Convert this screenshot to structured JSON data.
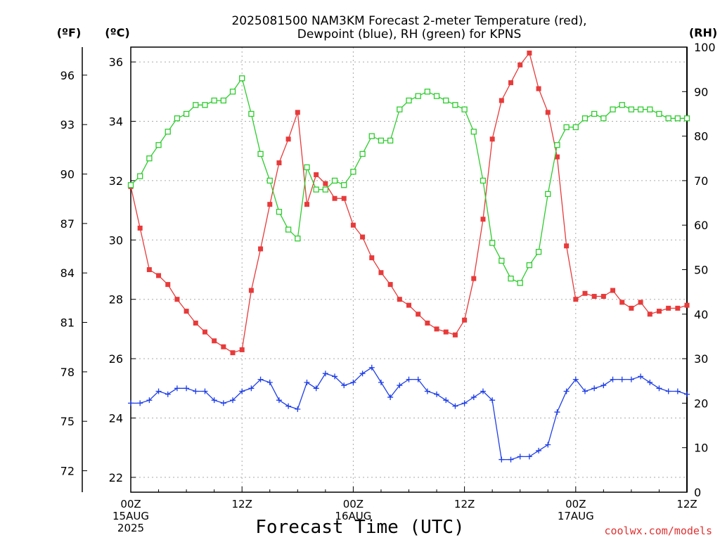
{
  "chart_data": {
    "type": "line",
    "title_line1": "2025081500 NAM3KM Forecast 2-meter Temperature (red),",
    "title_line2": "Dewpoint (blue), RH (green) for KPNS",
    "xlabel": "Forecast Time (UTC)",
    "credit": "coolwx.com/models",
    "left_unit_f": "(ºF)",
    "left_unit_c": "(ºC)",
    "right_unit": "(RH)",
    "x_range_hours": [
      0,
      60
    ],
    "x_ticks": [
      {
        "hour": 0,
        "lines": [
          "00Z",
          "15AUG",
          "2025"
        ]
      },
      {
        "hour": 12,
        "lines": [
          "12Z"
        ]
      },
      {
        "hour": 24,
        "lines": [
          "00Z",
          "16AUG"
        ]
      },
      {
        "hour": 36,
        "lines": [
          "12Z"
        ]
      },
      {
        "hour": 48,
        "lines": [
          "00Z",
          "17AUG"
        ]
      },
      {
        "hour": 60,
        "lines": [
          "12Z"
        ]
      }
    ],
    "y_celsius_range": [
      21.5,
      36.5
    ],
    "y_celsius_ticks": [
      22,
      24,
      26,
      28,
      30,
      32,
      34,
      36
    ],
    "y_fahrenheit_ticks": [
      72,
      75,
      78,
      81,
      84,
      87,
      90,
      93,
      96
    ],
    "y_rh_range": [
      0,
      100
    ],
    "y_rh_ticks": [
      0,
      10,
      20,
      30,
      40,
      50,
      60,
      70,
      80,
      90,
      100
    ],
    "grid": true,
    "series": [
      {
        "name": "Temperature",
        "color": "#e83a3a",
        "marker": "filled-square",
        "axis": "celsius",
        "values": [
          31.8,
          30.4,
          29.0,
          28.8,
          28.5,
          28.0,
          27.6,
          27.2,
          26.9,
          26.6,
          26.4,
          26.2,
          26.3,
          28.3,
          29.7,
          31.2,
          32.6,
          33.4,
          34.3,
          31.2,
          32.2,
          31.9,
          31.4,
          31.4,
          30.5,
          30.1,
          29.4,
          28.9,
          28.5,
          28.0,
          27.8,
          27.5,
          27.2,
          27.0,
          26.9,
          26.8,
          27.3,
          28.7,
          30.7,
          33.4,
          34.7,
          35.3,
          35.9,
          36.3,
          35.1,
          34.3,
          32.8,
          29.8,
          28.0,
          28.2,
          28.1,
          28.1,
          28.3,
          27.9,
          27.7,
          27.9,
          27.5,
          27.6,
          27.7,
          27.7,
          27.8
        ]
      },
      {
        "name": "Dewpoint",
        "color": "#1e3ee8",
        "marker": "plus",
        "axis": "celsius",
        "values": [
          24.5,
          24.5,
          24.6,
          24.9,
          24.8,
          25.0,
          25.0,
          24.9,
          24.9,
          24.6,
          24.5,
          24.6,
          24.9,
          25.0,
          25.3,
          25.2,
          24.6,
          24.4,
          24.3,
          25.2,
          25.0,
          25.5,
          25.4,
          25.1,
          25.2,
          25.5,
          25.7,
          25.2,
          24.7,
          25.1,
          25.3,
          25.3,
          24.9,
          24.8,
          24.6,
          24.4,
          24.5,
          24.7,
          24.9,
          24.6,
          22.6,
          22.6,
          22.7,
          22.7,
          22.9,
          23.1,
          24.2,
          24.9,
          25.3,
          24.9,
          25.0,
          25.1,
          25.3,
          25.3,
          25.3,
          25.4,
          25.2,
          25.0,
          24.9,
          24.9,
          24.8
        ]
      },
      {
        "name": "RH",
        "color": "#2ecc2e",
        "marker": "open-square",
        "axis": "rh",
        "values": [
          69,
          71,
          75,
          78,
          81,
          84,
          85,
          87,
          87,
          88,
          88,
          90,
          93,
          85,
          76,
          70,
          63,
          59,
          57,
          73,
          68,
          68,
          70,
          69,
          72,
          76,
          80,
          79,
          79,
          86,
          88,
          89,
          90,
          89,
          88,
          87,
          86,
          81,
          70,
          56,
          52,
          48,
          47,
          51,
          54,
          67,
          78,
          82,
          82,
          84,
          85,
          84,
          86,
          87,
          86,
          86,
          86,
          85,
          84,
          84,
          84
        ]
      }
    ]
  }
}
